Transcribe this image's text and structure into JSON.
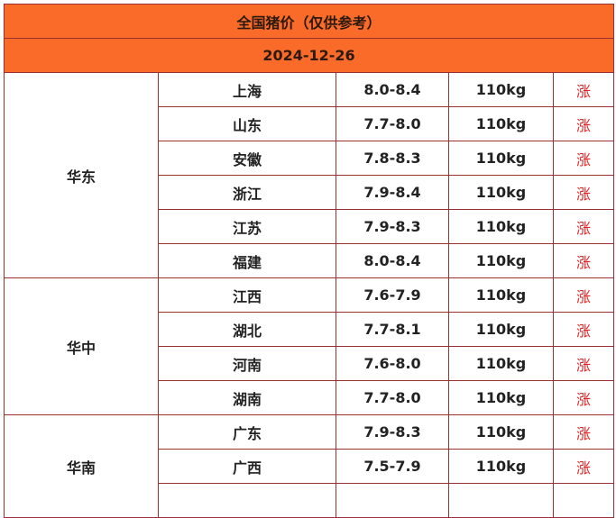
{
  "title": "全国猪价（仅供参考）",
  "date": "2024-12-26",
  "colors": {
    "header_bg": "#fa6a28",
    "border": "#9a3030",
    "trend_up": "#e52222"
  },
  "regions": [
    {
      "name": "华东",
      "rows": [
        {
          "province": "上海",
          "price": "8.0-8.4",
          "weight": "110kg",
          "trend": "涨"
        },
        {
          "province": "山东",
          "price": "7.7-8.0",
          "weight": "110kg",
          "trend": "涨"
        },
        {
          "province": "安徽",
          "price": "7.8-8.3",
          "weight": "110kg",
          "trend": "涨"
        },
        {
          "province": "浙江",
          "price": "7.9-8.4",
          "weight": "110kg",
          "trend": "涨"
        },
        {
          "province": "江苏",
          "price": "7.9-8.3",
          "weight": "110kg",
          "trend": "涨"
        },
        {
          "province": "福建",
          "price": "8.0-8.4",
          "weight": "110kg",
          "trend": "涨"
        }
      ]
    },
    {
      "name": "华中",
      "rows": [
        {
          "province": "江西",
          "price": "7.6-7.9",
          "weight": "110kg",
          "trend": "涨"
        },
        {
          "province": "湖北",
          "price": "7.7-8.1",
          "weight": "110kg",
          "trend": "涨"
        },
        {
          "province": "河南",
          "price": "7.6-8.0",
          "weight": "110kg",
          "trend": "涨"
        },
        {
          "province": "湖南",
          "price": "7.7-8.0",
          "weight": "110kg",
          "trend": "涨"
        }
      ]
    },
    {
      "name": "华南",
      "rows": [
        {
          "province": "广东",
          "price": "7.9-8.3",
          "weight": "110kg",
          "trend": "涨"
        },
        {
          "province": "广西",
          "price": "7.5-7.9",
          "weight": "110kg",
          "trend": "涨"
        },
        {
          "province": "",
          "price": "",
          "weight": "",
          "trend": ""
        }
      ]
    }
  ]
}
